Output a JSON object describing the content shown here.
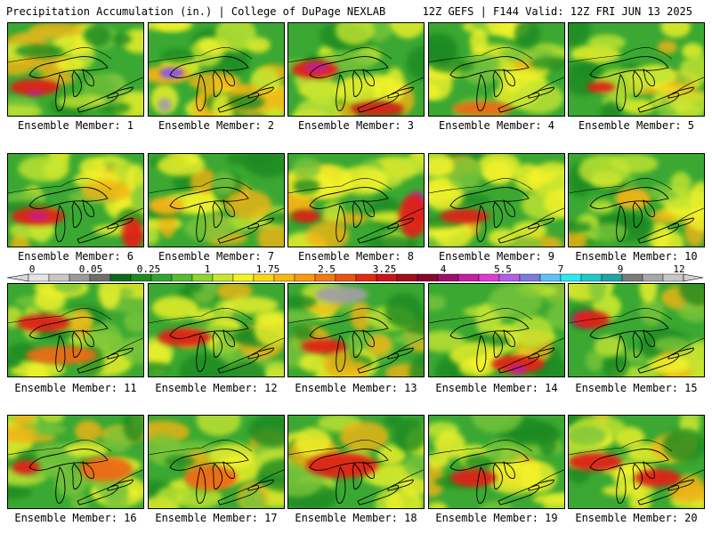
{
  "header": {
    "left": "Precipitation Accumulation (in.) | College of DuPage NEXLAB",
    "right": "12Z GEFS | F144 Valid: 12Z FRI JUN 13 2025"
  },
  "colorbar": {
    "labels": [
      "0",
      "0.05",
      "0.25",
      "1",
      "1.75",
      "2.5",
      "3.25",
      "4",
      "5.5",
      "7",
      "9",
      "12"
    ],
    "colors": [
      "#e4e4e4",
      "#c8c8c8",
      "#9a9a9a",
      "#6e6e6e",
      "#0e6b1e",
      "#1d8a25",
      "#2fa52d",
      "#56bd2f",
      "#8ed52c",
      "#c7e82a",
      "#f4f421",
      "#f8d718",
      "#f8b812",
      "#f89a10",
      "#f37811",
      "#ec5212",
      "#e22a12",
      "#c81416",
      "#a30e1f",
      "#86082a",
      "#9c0f70",
      "#c61fa4",
      "#e03ad0",
      "#b45ee6",
      "#7b7be0",
      "#5cc4f3",
      "#26ecf0",
      "#20c9c9",
      "#1fa5a5",
      "#7a7a7a",
      "#a8a8a8",
      "#c6c6c6"
    ]
  },
  "map_colors": {
    "green_dark": "#1c8a22",
    "green": "#3aa832",
    "green_light": "#79c53a",
    "yellow_green": "#c4e533",
    "yellow": "#f3f32a",
    "orange": "#f2b417",
    "red_orange": "#ee6a12",
    "red": "#de2412",
    "magenta": "#c21fa0",
    "purple": "#9a4fd6",
    "cyan": "#28ecf0",
    "gray": "#a0a0a0"
  },
  "members": [
    {
      "label": "Ensemble Member: 1"
    },
    {
      "label": "Ensemble Member: 2"
    },
    {
      "label": "Ensemble Member: 3"
    },
    {
      "label": "Ensemble Member: 4"
    },
    {
      "label": "Ensemble Member: 5"
    },
    {
      "label": "Ensemble Member: 6"
    },
    {
      "label": "Ensemble Member: 7"
    },
    {
      "label": "Ensemble Member: 8"
    },
    {
      "label": "Ensemble Member: 9"
    },
    {
      "label": "Ensemble Member: 10"
    },
    {
      "label": "Ensemble Member: 11"
    },
    {
      "label": "Ensemble Member: 12"
    },
    {
      "label": "Ensemble Member: 13"
    },
    {
      "label": "Ensemble Member: 14"
    },
    {
      "label": "Ensemble Member: 15"
    },
    {
      "label": "Ensemble Member: 16"
    },
    {
      "label": "Ensemble Member: 17"
    },
    {
      "label": "Ensemble Member: 18"
    },
    {
      "label": "Ensemble Member: 19"
    },
    {
      "label": "Ensemble Member: 20"
    }
  ]
}
